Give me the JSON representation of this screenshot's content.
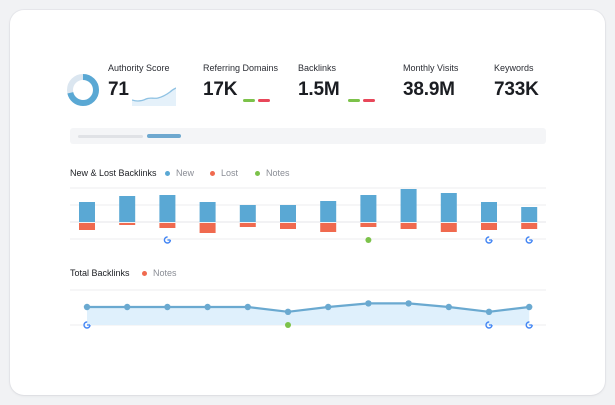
{
  "colors": {
    "blue": "#5aa8d4",
    "red": "#f06a4f",
    "green": "#7cc24a",
    "line": "#6aa9d0",
    "area": "#dff0fc"
  },
  "metrics": {
    "authority": {
      "label": "Authority Score",
      "value": "71",
      "score_fraction": 0.71
    },
    "domains": {
      "label": "Referring Domains",
      "value": "17K"
    },
    "backlinks": {
      "label": "Backlinks",
      "value": "1.5M"
    },
    "visits": {
      "label": "Monthly Visits",
      "value": "38.9M"
    },
    "keywords": {
      "label": "Keywords",
      "value": "733K"
    }
  },
  "new_lost": {
    "title": "New & Lost Backlinks",
    "legend": {
      "new": "New",
      "lost": "Lost",
      "notes": "Notes"
    }
  },
  "total": {
    "title": "Total Backlinks",
    "legend": {
      "notes": "Notes"
    }
  },
  "chart_data": [
    {
      "type": "bar",
      "title": "New & Lost Backlinks",
      "series": [
        {
          "name": "New",
          "values": [
            20,
            26,
            27,
            20,
            17,
            17,
            21,
            27,
            33,
            29,
            20,
            15
          ]
        },
        {
          "name": "Lost",
          "values": [
            -7,
            -2,
            -5,
            -10,
            -4,
            -6,
            -9,
            -4,
            -6,
            -9,
            -7,
            -6
          ]
        }
      ],
      "notes": [
        {
          "index": 2,
          "kind": "google"
        },
        {
          "index": 7,
          "kind": "note"
        },
        {
          "index": 10,
          "kind": "google"
        },
        {
          "index": 11,
          "kind": "google"
        }
      ],
      "grid": true
    },
    {
      "type": "area",
      "title": "Total Backlinks",
      "series": [
        {
          "values": [
            100,
            100,
            100,
            100,
            100,
            96,
            100,
            103,
            103,
            100,
            96,
            100
          ]
        }
      ],
      "ylim": [
        80,
        110
      ],
      "notes": [
        {
          "index": 0,
          "kind": "google"
        },
        {
          "index": 5,
          "kind": "note"
        },
        {
          "index": 10,
          "kind": "google"
        },
        {
          "index": 11,
          "kind": "google"
        }
      ],
      "grid": true
    }
  ]
}
